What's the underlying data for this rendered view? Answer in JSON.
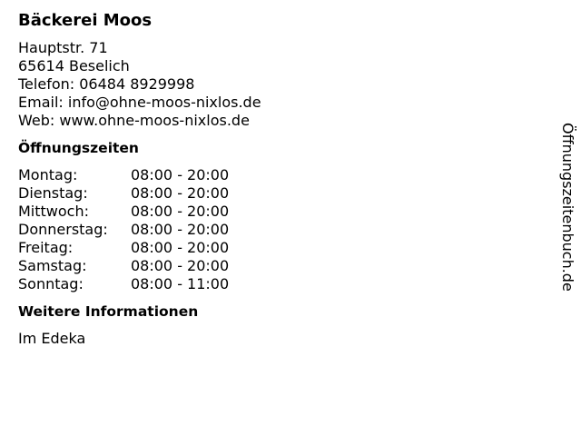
{
  "title": "Bäckerei Moos",
  "address": [
    "Hauptstr. 71",
    "65614 Beselich",
    "Telefon: 06484 8929998",
    "Email: info@ohne-moos-nixlos.de",
    "Web: www.ohne-moos-nixlos.de"
  ],
  "hours_heading": "Öffnungszeiten",
  "hours": [
    {
      "day": "Montag:",
      "time": "08:00 - 20:00"
    },
    {
      "day": "Dienstag:",
      "time": "08:00 - 20:00"
    },
    {
      "day": "Mittwoch:",
      "time": "08:00 - 20:00"
    },
    {
      "day": "Donnerstag:",
      "time": "08:00 - 20:00"
    },
    {
      "day": "Freitag:",
      "time": "08:00 - 20:00"
    },
    {
      "day": "Samstag:",
      "time": "08:00 - 20:00"
    },
    {
      "day": "Sonntag:",
      "time": "08:00 - 11:00"
    }
  ],
  "info_heading": "Weitere Informationen",
  "info": "Im Edeka",
  "side_brand": "Öffnungszeitenbuch.de"
}
